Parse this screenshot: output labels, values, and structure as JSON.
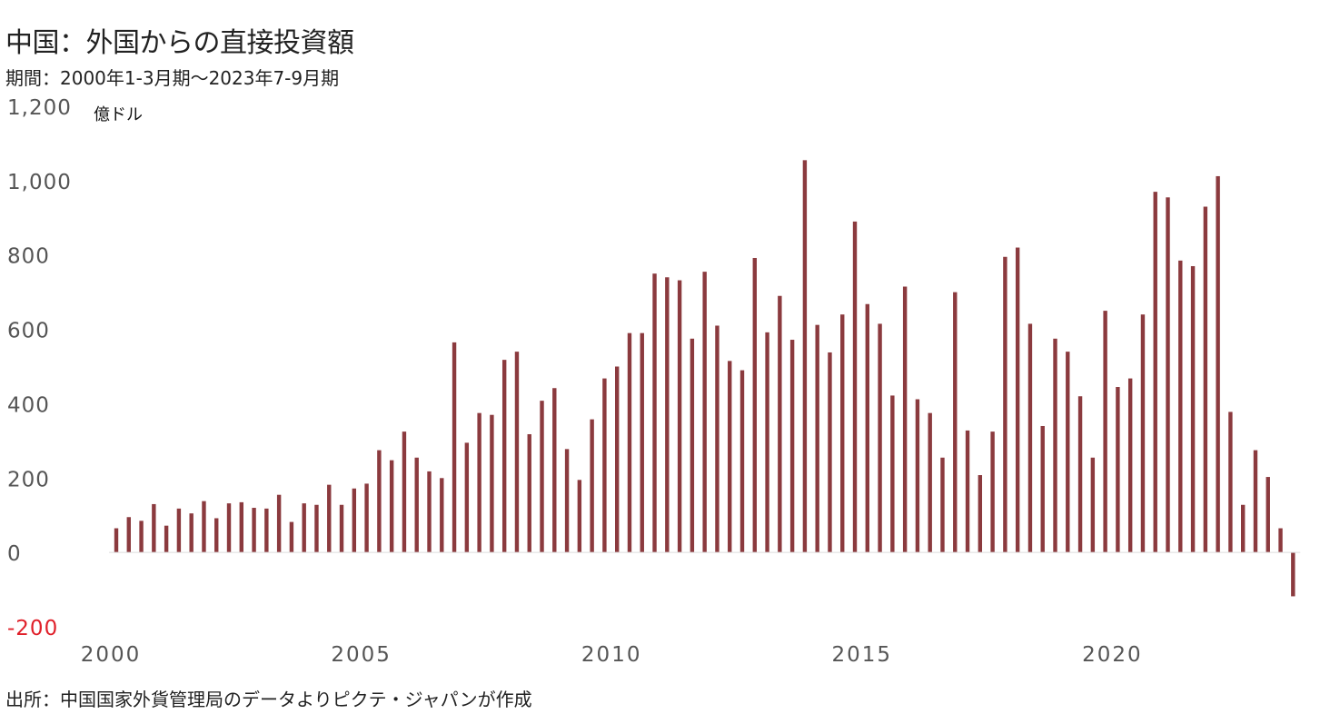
{
  "chart_data": {
    "type": "bar",
    "title": "中国：外国からの直接投資額",
    "subtitle": "期間：2000年1-3月期～2023年7-9月期",
    "unit_label": "億ドル",
    "source": "出所：中国国家外貨管理局のデータよりピクテ・ジャパンが作成",
    "x_start_year": 2000,
    "periods_per_year": 4,
    "xtick_labels": [
      "2000",
      "2005",
      "2010",
      "2015",
      "2020"
    ],
    "ylim": [
      -200,
      1200
    ],
    "yticks": [
      1200,
      1000,
      800,
      600,
      400,
      200,
      0,
      -200
    ],
    "ytick_labels": [
      "1,200",
      "1,000",
      "800",
      "600",
      "400",
      "200",
      "0",
      "-200"
    ],
    "grid": false,
    "bar_color": "#8b3a3e",
    "negative_label_color": "#e0202a",
    "values": [
      65,
      95,
      85,
      130,
      72,
      118,
      105,
      138,
      92,
      132,
      135,
      120,
      118,
      155,
      82,
      132,
      128,
      182,
      128,
      172,
      185,
      275,
      248,
      325,
      255,
      218,
      200,
      565,
      295,
      375,
      370,
      518,
      540,
      318,
      408,
      442,
      278,
      195,
      358,
      468,
      500,
      590,
      590,
      750,
      740,
      732,
      575,
      755,
      610,
      515,
      490,
      792,
      592,
      690,
      572,
      1055,
      612,
      538,
      640,
      890,
      668,
      615,
      422,
      715,
      412,
      375,
      255,
      700,
      328,
      208,
      325,
      795,
      820,
      615,
      340,
      575,
      540,
      420,
      255,
      650,
      445,
      468,
      640,
      970,
      955,
      785,
      770,
      930,
      1012,
      378,
      128,
      275,
      203,
      65,
      -118
    ]
  }
}
